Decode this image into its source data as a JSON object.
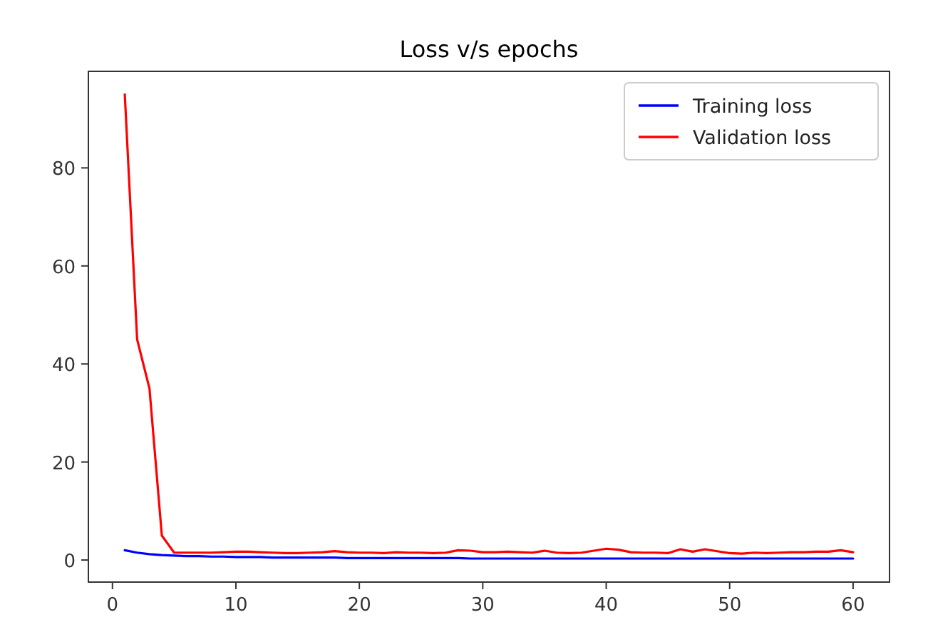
{
  "chart_data": {
    "type": "line",
    "title": "Loss v/s epochs",
    "x": [
      1,
      2,
      3,
      4,
      5,
      6,
      7,
      8,
      9,
      10,
      11,
      12,
      13,
      14,
      15,
      16,
      17,
      18,
      19,
      20,
      21,
      22,
      23,
      24,
      25,
      26,
      27,
      28,
      29,
      30,
      31,
      32,
      33,
      34,
      35,
      36,
      37,
      38,
      39,
      40,
      41,
      42,
      43,
      44,
      45,
      46,
      47,
      48,
      49,
      50,
      51,
      52,
      53,
      54,
      55,
      56,
      57,
      58,
      59,
      60
    ],
    "series": [
      {
        "name": "Training loss",
        "color": "#0000ff",
        "values": [
          2.0,
          1.5,
          1.2,
          1.0,
          0.9,
          0.8,
          0.8,
          0.7,
          0.7,
          0.6,
          0.6,
          0.6,
          0.5,
          0.5,
          0.5,
          0.5,
          0.5,
          0.5,
          0.4,
          0.4,
          0.4,
          0.4,
          0.4,
          0.4,
          0.4,
          0.4,
          0.4,
          0.4,
          0.3,
          0.3,
          0.3,
          0.3,
          0.3,
          0.3,
          0.3,
          0.3,
          0.3,
          0.3,
          0.3,
          0.3,
          0.3,
          0.3,
          0.3,
          0.3,
          0.3,
          0.3,
          0.3,
          0.3,
          0.3,
          0.3,
          0.3,
          0.3,
          0.3,
          0.3,
          0.3,
          0.3,
          0.3,
          0.3,
          0.3,
          0.3
        ]
      },
      {
        "name": "Validation loss",
        "color": "#ff0000",
        "values": [
          95,
          45,
          35,
          5,
          1.5,
          1.5,
          1.5,
          1.5,
          1.6,
          1.7,
          1.7,
          1.6,
          1.5,
          1.4,
          1.4,
          1.5,
          1.6,
          1.8,
          1.6,
          1.5,
          1.5,
          1.4,
          1.6,
          1.5,
          1.5,
          1.4,
          1.5,
          2.0,
          1.9,
          1.6,
          1.6,
          1.7,
          1.6,
          1.5,
          1.9,
          1.5,
          1.4,
          1.5,
          1.9,
          2.3,
          2.1,
          1.6,
          1.5,
          1.5,
          1.4,
          2.2,
          1.7,
          2.2,
          1.8,
          1.4,
          1.3,
          1.5,
          1.4,
          1.5,
          1.6,
          1.6,
          1.7,
          1.7,
          2.0,
          1.6
        ]
      }
    ],
    "xlim": [
      -1.95,
      62.95
    ],
    "ylim": [
      -4.5,
      99.7
    ],
    "xticks": [
      0,
      10,
      20,
      30,
      40,
      50,
      60
    ],
    "yticks": [
      0,
      20,
      40,
      60,
      80
    ],
    "legend": "top right",
    "marker": "none",
    "line_style": "solid",
    "grid": false
  }
}
